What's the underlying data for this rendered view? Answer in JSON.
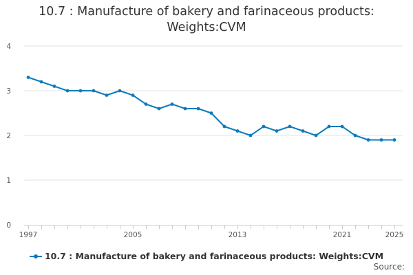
{
  "chart_data": {
    "type": "line",
    "title": "10.7 : Manufacture of bakery and farinaceous products: Weights:CVM",
    "x": [
      1997,
      1998,
      1999,
      2000,
      2001,
      2002,
      2003,
      2004,
      2005,
      2006,
      2007,
      2008,
      2009,
      2010,
      2011,
      2012,
      2013,
      2014,
      2015,
      2016,
      2017,
      2018,
      2019,
      2020,
      2021,
      2022,
      2023,
      2024,
      2025
    ],
    "series": [
      {
        "name": "10.7 : Manufacture of bakery and farinaceous products: Weights:CVM",
        "values": [
          3.3,
          3.2,
          3.1,
          3.0,
          3.0,
          3.0,
          2.9,
          3.0,
          2.9,
          2.7,
          2.6,
          2.7,
          2.6,
          2.6,
          2.5,
          2.2,
          2.1,
          2.0,
          2.2,
          2.1,
          2.2,
          2.1,
          2.0,
          2.2,
          2.2,
          2.0,
          1.9,
          1.9,
          1.9
        ]
      }
    ],
    "xticks": [
      "1997",
      "2005",
      "2013",
      "2021",
      "2025"
    ],
    "yticks": [
      "0",
      "1",
      "2",
      "3",
      "4"
    ],
    "xlim": [
      1997,
      2025
    ],
    "ylim": [
      0,
      4
    ],
    "color": "#0a7bbd",
    "grid": true,
    "legend_position": "bottom"
  },
  "source_label": "Source:"
}
